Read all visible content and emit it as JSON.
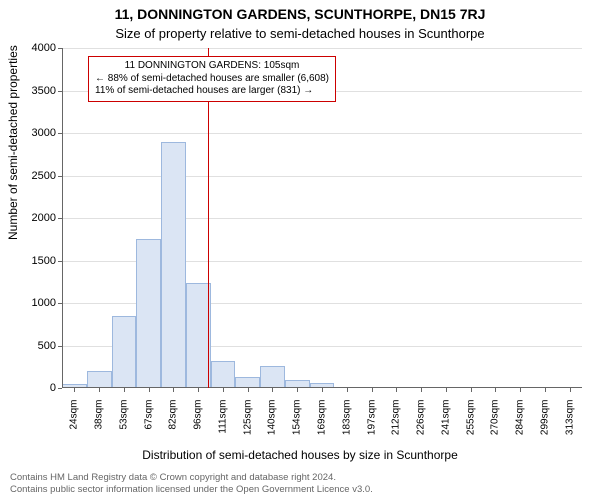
{
  "title": {
    "text": "11, DONNINGTON GARDENS, SCUNTHORPE, DN15 7RJ",
    "fontsize": 14,
    "fontweight": "bold",
    "color": "#000000"
  },
  "subtitle": {
    "text": "Size of property relative to semi-detached houses in Scunthorpe",
    "fontsize": 13,
    "color": "#000000"
  },
  "ylabel": {
    "text": "Number of semi-detached properties",
    "fontsize": 12,
    "color": "#000000"
  },
  "xlabel": {
    "text": "Distribution of semi-detached houses by size in Scunthorpe",
    "fontsize": 12,
    "color": "#000000"
  },
  "chart": {
    "type": "histogram",
    "background_color": "#ffffff",
    "grid_color": "#e0e0e0",
    "axis_color": "#666666",
    "ylim": [
      0,
      4000
    ],
    "ytick_step": 500,
    "yticks": [
      0,
      500,
      1000,
      1500,
      2000,
      2500,
      3000,
      3500,
      4000
    ],
    "xtick_labels": [
      "24sqm",
      "38sqm",
      "53sqm",
      "67sqm",
      "82sqm",
      "96sqm",
      "111sqm",
      "125sqm",
      "140sqm",
      "154sqm",
      "169sqm",
      "183sqm",
      "197sqm",
      "212sqm",
      "226sqm",
      "241sqm",
      "255sqm",
      "270sqm",
      "284sqm",
      "299sqm",
      "313sqm"
    ],
    "xtick_fontsize": 10,
    "ytick_fontsize": 11,
    "bars": {
      "values": [
        50,
        200,
        850,
        1750,
        2900,
        1230,
        320,
        130,
        260,
        100,
        60,
        0,
        0,
        0,
        0,
        0,
        0,
        0,
        0,
        0,
        0
      ],
      "fill_color": "#dbe5f4",
      "border_color": "#9db8de",
      "border_width": 1,
      "width_ratio": 1.0
    },
    "reference_line": {
      "x_value": 105,
      "x_range": [
        24,
        313
      ],
      "color": "#cc0000",
      "width": 1
    },
    "annotation": {
      "lines": [
        "11 DONNINGTON GARDENS: 105sqm",
        "← 88% of semi-detached houses are smaller (6,608)",
        "11% of semi-detached houses are larger (831) →"
      ],
      "border_color": "#cc0000",
      "border_width": 1,
      "fontsize": 10,
      "background": "#ffffff",
      "text_color": "#000000"
    }
  },
  "footer": {
    "line1": "Contains HM Land Registry data © Crown copyright and database right 2024.",
    "line2": "Contains public sector information licensed under the Open Government Licence v3.0.",
    "fontsize": 9.5,
    "color": "#666666"
  }
}
